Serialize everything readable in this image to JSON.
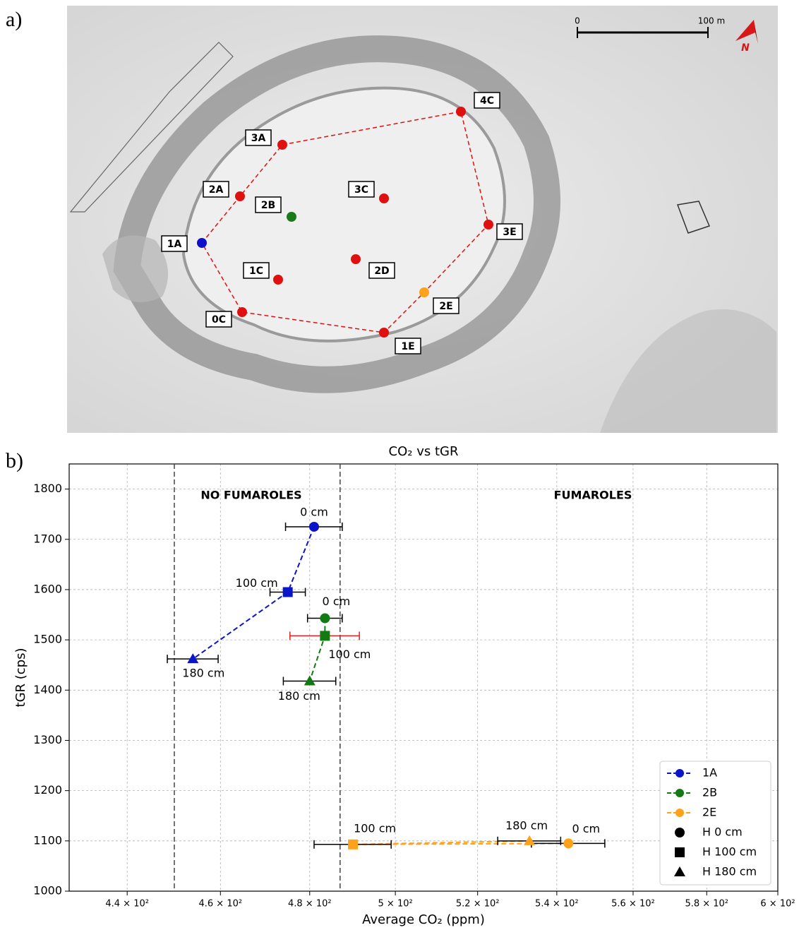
{
  "panel_a": {
    "label": "a)",
    "scale_labels": [
      "0",
      "100 m"
    ],
    "north": "N",
    "points": [
      {
        "label": "4C",
        "color": "#e01010"
      },
      {
        "label": "3A",
        "color": "#e01010"
      },
      {
        "label": "2A",
        "color": "#e01010"
      },
      {
        "label": "3C",
        "color": "#e01010"
      },
      {
        "label": "2B",
        "color": "#1a7a1a"
      },
      {
        "label": "1A",
        "color": "#1010cc"
      },
      {
        "label": "3E",
        "color": "#e01010"
      },
      {
        "label": "1C",
        "color": "#e01010"
      },
      {
        "label": "2D",
        "color": "#e01010"
      },
      {
        "label": "2E",
        "color": "#ffa21a"
      },
      {
        "label": "0C",
        "color": "#e01010"
      },
      {
        "label": "1E",
        "color": "#e01010"
      }
    ]
  },
  "panel_b": {
    "label": "b)"
  },
  "chart_data": {
    "type": "scatter",
    "title": "CO₂ vs tGR",
    "x_label": "Average CO₂ (ppm)",
    "y_label": "tGR (cps)",
    "log_x": true,
    "grid": true,
    "xlim": [
      428,
      600
    ],
    "ylim": [
      1000,
      1850
    ],
    "xticks": [
      {
        "value": 440,
        "label": "4.4 × 10²"
      },
      {
        "value": 460,
        "label": "4.6 × 10²"
      },
      {
        "value": 480,
        "label": "4.8 × 10²"
      },
      {
        "value": 500,
        "label": "5 × 10²"
      },
      {
        "value": 520,
        "label": "5.2 × 10²"
      },
      {
        "value": 540,
        "label": "5.4 × 10²"
      },
      {
        "value": 560,
        "label": "5.6 × 10²"
      },
      {
        "value": 580,
        "label": "5.8 × 10²"
      },
      {
        "value": 600,
        "label": "6 × 10²"
      }
    ],
    "yticks": [
      1000,
      1100,
      1200,
      1300,
      1400,
      1500,
      1600,
      1700,
      1800
    ],
    "vlines": [
      450,
      487
    ],
    "annotations": [
      "NO FUMAROLES",
      "FUMAROLES"
    ],
    "series": [
      {
        "name": "1A",
        "color": "#0a14c8",
        "x": [
          481,
          475,
          454
        ],
        "y": [
          1725,
          1595,
          1462
        ],
        "xerr": [
          6.5,
          4,
          5.5
        ],
        "error_colors": [
          "#000000",
          "#000000",
          "#000000"
        ],
        "markers": [
          "circle",
          "square",
          "triangle"
        ],
        "point_labels": [
          "0 cm",
          "100 cm",
          "180 cm"
        ]
      },
      {
        "name": "2B",
        "color": "#137a13",
        "x": [
          483.5,
          483.5,
          480
        ],
        "y": [
          1543,
          1508,
          1418
        ],
        "xerr": [
          4,
          8,
          6
        ],
        "error_colors": [
          "#000000",
          "#e02020",
          "#000000"
        ],
        "markers": [
          "circle",
          "square",
          "triangle"
        ],
        "point_labels": [
          "0 cm",
          "100 cm",
          "180 cm"
        ]
      },
      {
        "name": "2E",
        "color": "#ffa21a",
        "x": [
          543,
          490,
          533
        ],
        "y": [
          1095,
          1093,
          1100
        ],
        "xerr": [
          9.5,
          9,
          8
        ],
        "error_colors": [
          "#000000",
          "#000000",
          "#000000"
        ],
        "markers": [
          "circle",
          "square",
          "triangle"
        ],
        "point_labels": [
          "0 cm",
          "100 cm",
          "180 cm"
        ]
      }
    ],
    "marker_legend": [
      {
        "name": "H 0 cm",
        "marker": "circle"
      },
      {
        "name": "H 100 cm",
        "marker": "square"
      },
      {
        "name": "H 180 cm",
        "marker": "triangle"
      }
    ],
    "legend": "lower right"
  }
}
